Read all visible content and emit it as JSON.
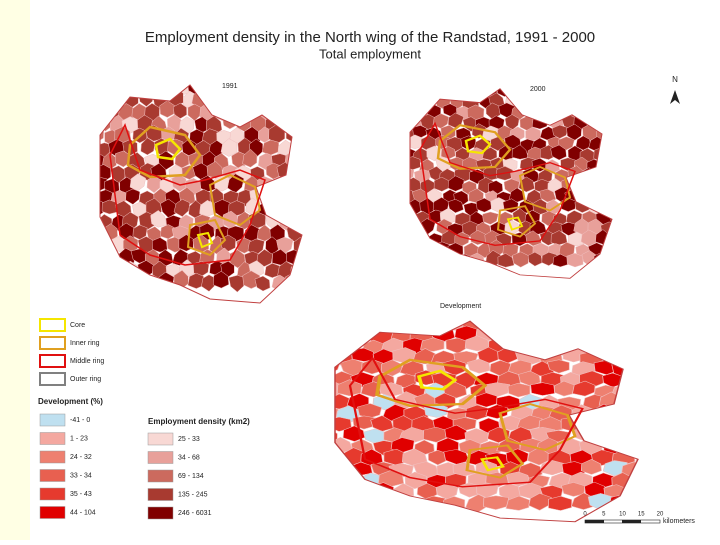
{
  "header": {
    "title": "Employment density in the North wing of the Randstad, 1991 - 2000",
    "subtitle": "Total employment"
  },
  "maps": [
    {
      "label": "1991"
    },
    {
      "label": "2000"
    },
    {
      "label": "Development"
    }
  ],
  "north": "N",
  "legend": {
    "rings": [
      {
        "label": "Core",
        "color": "#f5e600"
      },
      {
        "label": "Inner ring",
        "color": "#e0a020"
      },
      {
        "label": "Middle ring",
        "color": "#e01010"
      },
      {
        "label": "Outer ring",
        "color": "#808080"
      }
    ],
    "development": {
      "title": "Development (%)",
      "items": [
        {
          "label": "-41 - 0",
          "color": "#bfe0f0"
        },
        {
          "label": "1 - 23",
          "color": "#f4a8a0"
        },
        {
          "label": "24 - 32",
          "color": "#ee8070"
        },
        {
          "label": "33 - 34",
          "color": "#e86050"
        },
        {
          "label": "35 - 43",
          "color": "#e63a2e"
        },
        {
          "label": "44 - 104",
          "color": "#e00000"
        }
      ]
    },
    "density": {
      "title": "Employment density (km2)",
      "items": [
        {
          "label": "25 - 33",
          "color": "#f8d8d4"
        },
        {
          "label": "34 - 68",
          "color": "#e8a09a"
        },
        {
          "label": "69 - 134",
          "color": "#cc6a5e"
        },
        {
          "label": "135 - 245",
          "color": "#a83a30"
        },
        {
          "label": "246 - 6031",
          "color": "#800000"
        }
      ]
    }
  },
  "scale": {
    "labels": [
      "0",
      "5",
      "10",
      "15",
      "20"
    ],
    "unit": "kilometers"
  }
}
